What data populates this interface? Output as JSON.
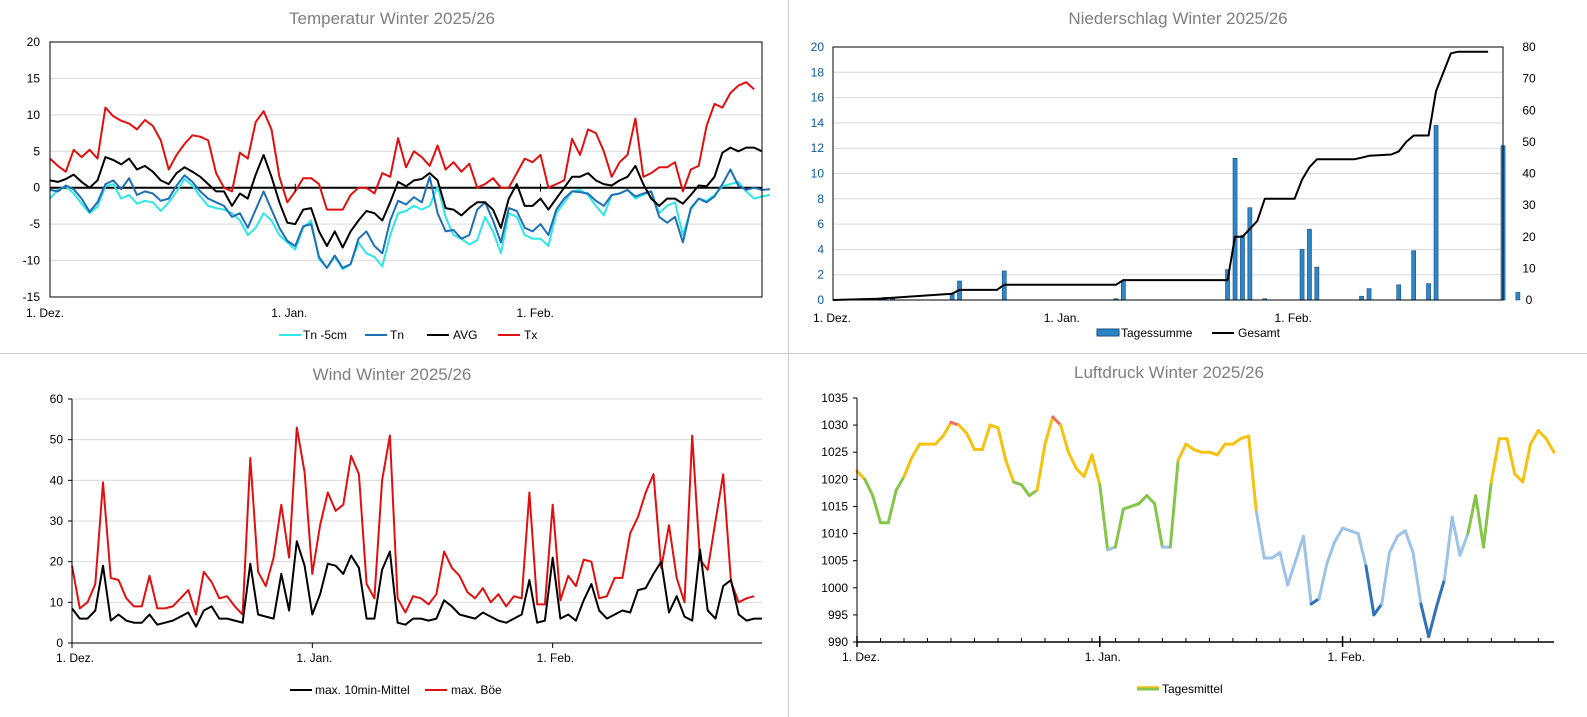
{
  "colors": {
    "tn5": "#2ee6e6",
    "tn": "#1f6fb5",
    "avg": "#000000",
    "tx": "#e01010",
    "bar_fill": "#2e86c8",
    "bar_stroke": "#1a4f80",
    "gesamt": "#000000",
    "wind_mean": "#000000",
    "wind_gust": "#e01010",
    "pressure_low": "#2f72b8",
    "pressure_lowmid": "#9cc3e6",
    "pressure_mid": "#86c44a",
    "pressure_high": "#f5c211",
    "pressure_vhigh": "#f26b6b"
  },
  "chart_data": [
    {
      "type": "line",
      "title": "Temperatur Winter 2025/26",
      "ylim": [
        -15,
        20
      ],
      "yticks": [
        "20",
        "15",
        "10",
        "5",
        "0",
        "-5",
        "-10",
        "-15"
      ],
      "xtick_labels": [
        "1. Dez.",
        "1. Jan.",
        "1. Feb."
      ],
      "xtick_days": [
        0,
        31,
        62
      ],
      "grid": true,
      "legend_position": "bottom",
      "series": [
        {
          "name": "Tn -5cm",
          "key": "tn5",
          "values": [
            -1.5,
            -0.3,
            0.2,
            -0.8,
            -2.2,
            -3.5,
            -2.6,
            0.2,
            0.5,
            -1.5,
            -1.0,
            -2.2,
            -1.8,
            -2.0,
            -3.2,
            -2.0,
            -0.5,
            1.2,
            0.3,
            -1.2,
            -2.5,
            -2.8,
            -3.0,
            -3.5,
            -4.5,
            -6.5,
            -5.5,
            -3.5,
            -4.5,
            -6.5,
            -7.5,
            -8.5,
            -5.5,
            -4.5,
            -9.8,
            -11.0,
            -9.5,
            -11.2,
            -10.5,
            -7.5,
            -9.0,
            -9.5,
            -10.8,
            -6.5,
            -3.5,
            -3.2,
            -2.5,
            -3.0,
            -2.5,
            0.2,
            -4.0,
            -6.5,
            -7.0,
            -7.8,
            -7.2,
            -4.0,
            -6.0,
            -9.0,
            -3.5,
            -4.0,
            -6.5,
            -7.0,
            -7.0,
            -8.0,
            -3.5,
            -2.0,
            -0.5,
            -0.3,
            -1.0,
            -2.5,
            -3.8,
            -1.0,
            -0.8,
            -0.3,
            -1.5,
            -1.0,
            -0.5,
            -3.5,
            -2.5,
            -2.0,
            -6.5,
            -3.0,
            -1.5,
            -1.8,
            -1.0,
            0.2,
            0.5,
            0.8,
            -0.5,
            -1.5,
            -1.2,
            -1.0
          ]
        },
        {
          "name": "Tn",
          "key": "tn",
          "values": [
            -0.3,
            -0.5,
            0.3,
            -0.2,
            -1.5,
            -3.3,
            -2.0,
            0.5,
            1.0,
            -0.2,
            1.3,
            -1.0,
            -0.5,
            -0.8,
            -1.8,
            -1.5,
            0.3,
            1.7,
            0.8,
            -0.5,
            -1.5,
            -2.0,
            -2.5,
            -4.0,
            -3.5,
            -5.5,
            -3.0,
            -0.5,
            -3.0,
            -5.5,
            -7.3,
            -8.0,
            -5.3,
            -5.0,
            -9.5,
            -11.0,
            -9.3,
            -11.0,
            -10.5,
            -7.0,
            -6.0,
            -8.0,
            -9.0,
            -4.5,
            -1.8,
            -2.3,
            -1.3,
            -2.0,
            1.5,
            -3.5,
            -6.0,
            -5.8,
            -7.0,
            -6.5,
            -3.0,
            -2.0,
            -4.5,
            -7.5,
            -2.8,
            -3.2,
            -5.5,
            -6.0,
            -5.0,
            -6.5,
            -3.0,
            -1.5,
            -0.5,
            -0.6,
            -0.8,
            -1.8,
            -2.5,
            -1.0,
            -0.8,
            -0.3,
            -1.2,
            -0.8,
            -0.5,
            -4.0,
            -4.8,
            -4.0,
            -7.5,
            -2.8,
            -1.5,
            -2.0,
            -1.2,
            0.5,
            2.5,
            0.3,
            -0.3,
            0.0,
            -0.3,
            -0.2
          ]
        },
        {
          "name": "AVG",
          "key": "avg",
          "values": [
            1.0,
            0.8,
            1.2,
            1.8,
            0.8,
            0.0,
            1.0,
            4.2,
            3.8,
            3.2,
            4.0,
            2.5,
            3.0,
            2.2,
            1.0,
            0.5,
            2.0,
            2.8,
            2.2,
            1.5,
            0.5,
            -0.5,
            -0.5,
            -2.5,
            -0.8,
            -1.5,
            1.8,
            4.5,
            1.5,
            -2.0,
            -4.8,
            -5.0,
            -3.0,
            -2.8,
            -6.0,
            -8.0,
            -6.0,
            -8.2,
            -6.0,
            -4.5,
            -3.2,
            -3.5,
            -4.5,
            -2.0,
            0.8,
            0.2,
            1.0,
            1.2,
            2.0,
            1.0,
            -2.8,
            -3.0,
            -3.8,
            -2.8,
            -2.0,
            -2.0,
            -3.0,
            -5.5,
            -1.5,
            0.5,
            -2.5,
            -2.5,
            -1.5,
            -3.0,
            -1.5,
            0.0,
            1.5,
            1.5,
            2.0,
            1.0,
            0.5,
            0.3,
            1.0,
            1.5,
            3.0,
            0.5,
            -1.5,
            -2.5,
            -1.5,
            -1.5,
            -2.2,
            -1.0,
            0.3,
            0.2,
            1.5,
            4.8,
            5.5,
            5.0,
            5.5,
            5.5,
            5.0
          ]
        },
        {
          "name": "Tx",
          "key": "tx",
          "values": [
            4.0,
            3.0,
            2.2,
            5.2,
            4.2,
            5.2,
            4.0,
            11.0,
            9.8,
            9.2,
            8.8,
            8.0,
            9.3,
            8.5,
            6.5,
            2.5,
            4.5,
            6.0,
            7.2,
            7.0,
            6.5,
            2.0,
            0.0,
            -0.5,
            4.8,
            4.0,
            9.0,
            10.5,
            8.0,
            1.5,
            -2.0,
            -0.5,
            1.3,
            1.3,
            0.5,
            -3.0,
            -3.0,
            -3.0,
            -1.0,
            0.0,
            0.0,
            -0.8,
            2.0,
            1.5,
            6.8,
            2.8,
            5.0,
            4.2,
            3.0,
            5.8,
            2.5,
            3.5,
            2.2,
            3.3,
            0.0,
            0.5,
            1.3,
            0.0,
            0.0,
            2.0,
            4.0,
            3.5,
            4.5,
            0.0,
            0.5,
            1.0,
            6.7,
            4.5,
            8.0,
            7.5,
            5.0,
            1.5,
            3.5,
            4.5,
            9.5,
            1.5,
            2.0,
            2.8,
            2.8,
            3.5,
            -0.5,
            2.5,
            3.0,
            8.5,
            11.5,
            11.0,
            13.0,
            14.0,
            14.5,
            13.5
          ]
        }
      ]
    },
    {
      "type": "bar",
      "title": "Niederschlag Winter 2025/26",
      "ylim": [
        0,
        20
      ],
      "y2lim": [
        0,
        80
      ],
      "yticks": [
        "20",
        "18",
        "16",
        "14",
        "12",
        "10",
        "8",
        "6",
        "4",
        "2",
        "0"
      ],
      "y2ticks": [
        "80",
        "70",
        "60",
        "50",
        "40",
        "30",
        "20",
        "10",
        "0"
      ],
      "xtick_labels": [
        "1. Dez.",
        "1. Jan.",
        "1. Feb."
      ],
      "xtick_days": [
        0,
        31,
        62
      ],
      "grid": true,
      "legend_position": "bottom",
      "bars": {
        "name": "Tagessumme",
        "key": "bar_fill",
        "days": [
          7,
          8,
          16,
          17,
          23,
          38,
          39,
          53,
          54,
          55,
          56,
          58,
          63,
          64,
          65,
          71,
          72,
          76,
          78,
          80,
          81,
          90,
          92
        ],
        "values": [
          0.2,
          0.1,
          0.5,
          1.5,
          2.3,
          0.1,
          1.5,
          2.4,
          11.2,
          5.1,
          7.3,
          0.1,
          4.0,
          5.6,
          2.6,
          0.3,
          0.9,
          1.2,
          3.9,
          1.3,
          13.8,
          12.2,
          0.6
        ]
      },
      "line": {
        "name": "Gesamt",
        "key": "gesamt",
        "days": [
          0,
          6,
          16,
          17,
          22,
          23,
          38,
          39,
          53,
          54,
          55,
          57,
          58,
          62,
          63,
          64,
          65,
          70,
          71,
          72,
          75,
          76,
          77,
          78,
          80,
          81,
          83,
          84,
          88
        ],
        "values": [
          0,
          0.4,
          2.0,
          3.2,
          3.2,
          4.8,
          4.8,
          6.3,
          6.3,
          20,
          20,
          25,
          32,
          32,
          38,
          42,
          44.5,
          44.5,
          45,
          45.6,
          46,
          47,
          50,
          52,
          52,
          66,
          78,
          78.5,
          78.5
        ]
      }
    },
    {
      "type": "line",
      "title": "Wind Winter 2025/26",
      "ylim": [
        0,
        60
      ],
      "yticks": [
        "60",
        "50",
        "40",
        "30",
        "20",
        "10",
        "0"
      ],
      "xtick_labels": [
        "1. Dez.",
        "1. Jan.",
        "1. Feb."
      ],
      "xtick_days": [
        0,
        31,
        62
      ],
      "grid": true,
      "legend_position": "bottom",
      "series": [
        {
          "name": "max. 10min-Mittel",
          "key": "wind_mean",
          "values": [
            8.5,
            6,
            6,
            8,
            19,
            5.5,
            7,
            5.5,
            5,
            5,
            7,
            4.5,
            5,
            5.5,
            6.5,
            7.5,
            4,
            8,
            9,
            6,
            6,
            5.5,
            5,
            19.5,
            7,
            6.5,
            6,
            17,
            8,
            25,
            19,
            7,
            12,
            19.5,
            19,
            17,
            21.5,
            18.5,
            6,
            6,
            18,
            22.5,
            5,
            4.5,
            6,
            6,
            5.5,
            6,
            10.5,
            9,
            7,
            6.5,
            6,
            7.5,
            6.5,
            5.5,
            5,
            6,
            7,
            15.5,
            5,
            5.5,
            21,
            6,
            7,
            5.5,
            10.5,
            14.5,
            8,
            6,
            7,
            8,
            7.5,
            13,
            13.5,
            17,
            20,
            7.5,
            11.5,
            6.5,
            5.5,
            23,
            8,
            6,
            14,
            15.5,
            7,
            5.5,
            6,
            6
          ]
        },
        {
          "name": "max. Böe",
          "key": "wind_gust",
          "values": [
            19,
            8.5,
            10,
            14.5,
            39.5,
            16,
            15.5,
            11,
            9,
            9,
            16.5,
            8.5,
            8.5,
            9,
            11,
            13,
            7,
            17.5,
            15,
            11,
            11.5,
            9,
            7,
            45.5,
            17.5,
            14,
            21,
            34,
            21,
            53,
            42,
            17,
            29,
            37,
            32.5,
            34,
            46,
            41.5,
            14.5,
            11,
            40,
            51,
            11,
            7.5,
            11.5,
            11,
            9.5,
            12,
            22.5,
            18.5,
            16.5,
            12.5,
            11,
            13.5,
            10,
            12,
            9,
            11.5,
            11,
            37,
            9.5,
            9.5,
            34,
            10.5,
            16.5,
            14,
            20.5,
            20,
            11,
            11.5,
            16,
            16,
            27,
            31,
            37,
            41.5,
            18.5,
            29,
            16,
            10,
            51,
            20.5,
            18,
            30,
            41.5,
            15,
            10,
            11,
            11.5
          ]
        }
      ]
    },
    {
      "type": "line",
      "title": "Luftdruck Winter 2025/26",
      "ylim": [
        990,
        1035
      ],
      "yticks": [
        "1035",
        "1030",
        "1025",
        "1020",
        "1015",
        "1010",
        "1005",
        "1000",
        "995",
        "990"
      ],
      "xtick_labels": [
        "1. Dez.",
        "1. Jan.",
        "1. Feb."
      ],
      "xtick_days": [
        0,
        31,
        62
      ],
      "grid": false,
      "legend_position": "bottom",
      "series": [
        {
          "name": "Tagesmittel",
          "key": "pressure_mid",
          "values": [
            1021.5,
            1020,
            1017,
            1012,
            1012,
            1018,
            1020.5,
            1024,
            1026.5,
            1026.5,
            1026.5,
            1028,
            1030.5,
            1030,
            1028.5,
            1025.5,
            1025.5,
            1030,
            1029.5,
            1023.5,
            1019.5,
            1019,
            1017,
            1018,
            1026.5,
            1031.5,
            1030,
            1025,
            1022,
            1020.5,
            1024.5,
            1019,
            1007,
            1007.5,
            1014.5,
            1015,
            1015.5,
            1017,
            1015.5,
            1007.5,
            1007.5,
            1023.5,
            1026.5,
            1025.5,
            1025,
            1025,
            1024.5,
            1026.5,
            1026.5,
            1027.5,
            1028,
            1014,
            1005.5,
            1005.5,
            1006.5,
            1000.5,
            1005,
            1009.5,
            997,
            998,
            1004.5,
            1008.5,
            1011,
            1010.5,
            1010,
            1004,
            995,
            997,
            1006.5,
            1009.5,
            1010.5,
            1006.5,
            997,
            991,
            996.5,
            1001.5,
            1013,
            1006,
            1010,
            1017,
            1007.5,
            1019.5,
            1027.5,
            1027.5,
            1021,
            1019.5,
            1026.5,
            1029,
            1027.5,
            1025
          ]
        }
      ]
    }
  ],
  "legends": {
    "temp": [
      "Tn -5cm",
      "Tn",
      "AVG",
      "Tx"
    ],
    "precip": [
      "Tagessumme",
      "Gesamt"
    ],
    "wind": [
      "max. 10min-Mittel",
      "max. Böe"
    ],
    "pressure": [
      "Tagesmittel"
    ]
  }
}
